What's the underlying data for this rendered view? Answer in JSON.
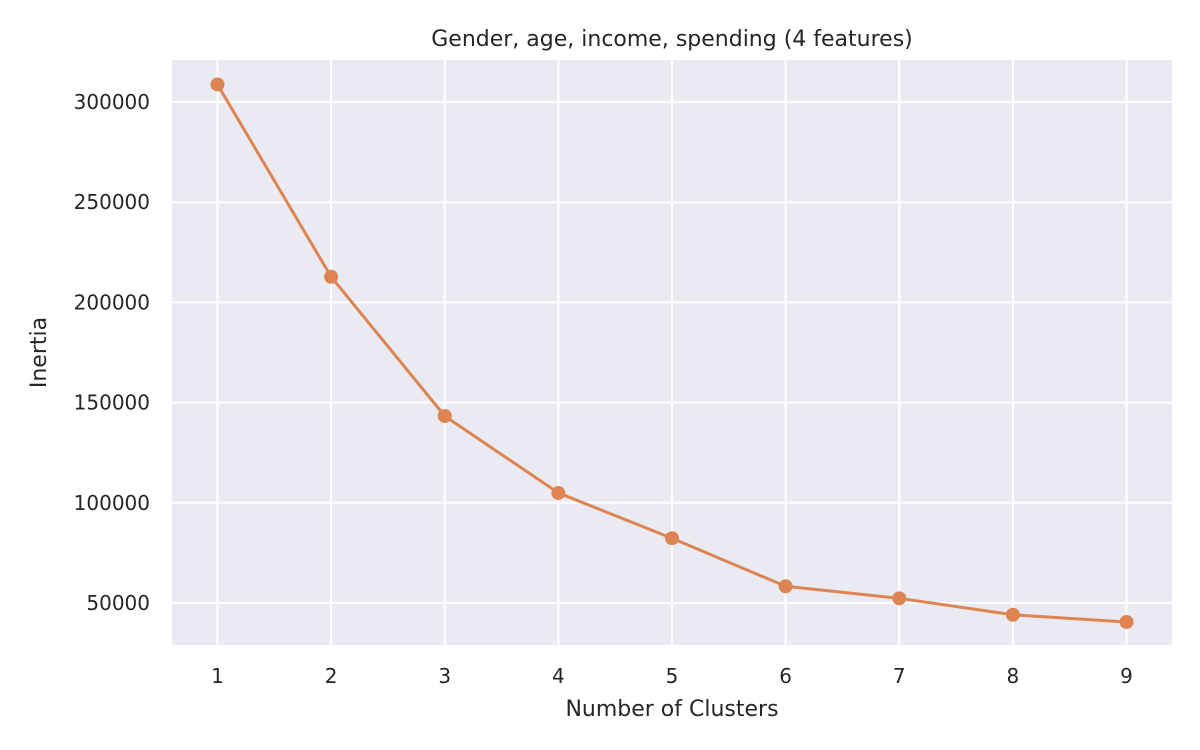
{
  "chart_data": {
    "type": "line",
    "title": "Gender, age, income, spending (4 features)",
    "xlabel": "Number of Clusters",
    "ylabel": "Inertia",
    "x": [
      1,
      2,
      3,
      4,
      5,
      6,
      7,
      8,
      9
    ],
    "series": [
      {
        "values": [
          308800,
          212800,
          143300,
          104900,
          82300,
          58300,
          52300,
          44100,
          40500
        ]
      }
    ],
    "xlim": [
      0.6,
      9.4
    ],
    "ylim": [
      29000,
      321000
    ],
    "xticks": [
      1,
      2,
      3,
      4,
      5,
      6,
      7,
      8,
      9
    ],
    "yticks": [
      50000,
      100000,
      150000,
      200000,
      250000,
      300000
    ],
    "grid": true,
    "background_color": "#eaeaf2",
    "grid_color": "#ffffff",
    "line_color": "#dd8452",
    "text_color": "#262626"
  }
}
